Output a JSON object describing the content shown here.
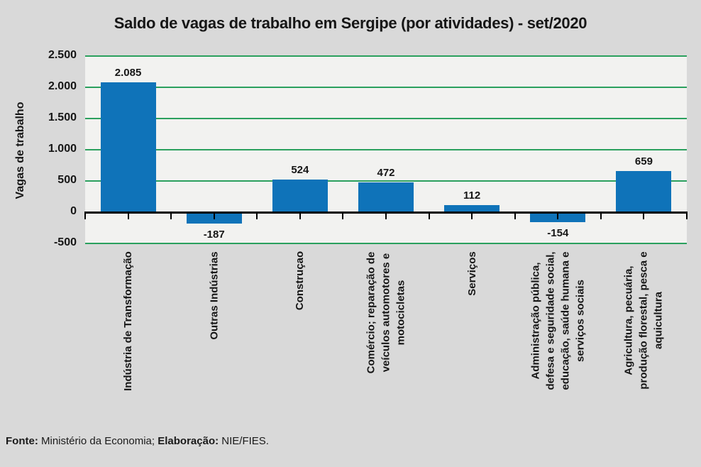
{
  "chart_data": {
    "type": "bar",
    "title": "Saldo de vagas de trabalho em Sergipe (por atividades) - set/2020",
    "xlabel": "",
    "ylabel": "Vagas de trabalho",
    "categories": [
      [
        "Indústria de Transformação"
      ],
      [
        "Outras Indústrias"
      ],
      [
        "Construçao"
      ],
      [
        "Comércio; reparação de",
        "veículos automotores e",
        "motocicletas"
      ],
      [
        "Serviços"
      ],
      [
        "Administração pública,",
        "defesa e seguridade social,",
        "educação, saúde humana e",
        "serviços sociais"
      ],
      [
        "Agricultura, pecuária,",
        "produção florestal, pesca e",
        "aquicultura"
      ]
    ],
    "values": [
      2085,
      -187,
      524,
      472,
      112,
      -154,
      659
    ],
    "value_labels": [
      "2.085",
      "-187",
      "524",
      "472",
      "112",
      "-154",
      "659"
    ],
    "y_ticks": [
      "2.500",
      "2.000",
      "1.500",
      "1.000",
      "500",
      "0",
      "-500"
    ],
    "y_tick_values": [
      2500,
      2000,
      1500,
      1000,
      500,
      0,
      -500
    ],
    "ylim": [
      -500,
      2500
    ],
    "grid": true,
    "legend": false,
    "bar_color": "#0F73B9",
    "grid_color": "#2BA05E",
    "axis_color": "#000000",
    "plot_bg": "#F2F2F0",
    "canvas_bg": "#D9D9D9",
    "text_color": "#161616"
  },
  "footer": {
    "fonte_label": "Fonte:",
    "fonte_text": " Ministério da Economia; ",
    "elaboracao_label": "Elaboração:",
    "elaboracao_text": " NIE/FIES."
  }
}
